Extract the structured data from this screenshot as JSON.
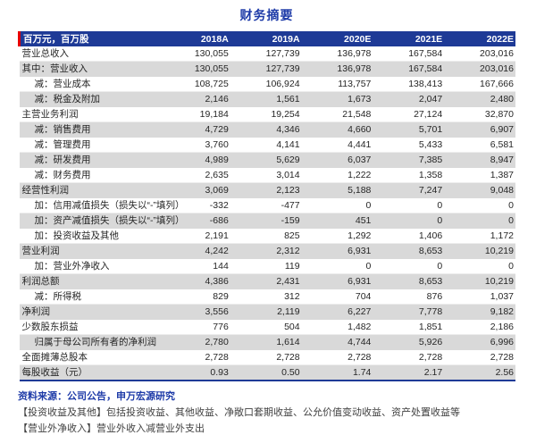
{
  "title": "财务摘要",
  "table": {
    "unit_label": "百万元，百万股",
    "columns": [
      "2018A",
      "2019A",
      "2020E",
      "2021E",
      "2022E"
    ],
    "rows": [
      {
        "label": "营业总收入",
        "indent": 0,
        "values": [
          "130,055",
          "127,739",
          "136,978",
          "167,584",
          "203,016"
        ]
      },
      {
        "label": "其中：营业收入",
        "indent": 0,
        "values": [
          "130,055",
          "127,739",
          "136,978",
          "167,584",
          "203,016"
        ]
      },
      {
        "label": "减：营业成本",
        "indent": 1,
        "values": [
          "108,725",
          "106,924",
          "113,757",
          "138,413",
          "167,666"
        ]
      },
      {
        "label": "减：税金及附加",
        "indent": 1,
        "values": [
          "2,146",
          "1,561",
          "1,673",
          "2,047",
          "2,480"
        ]
      },
      {
        "label": "主营业务利润",
        "indent": 0,
        "values": [
          "19,184",
          "19,254",
          "21,548",
          "27,124",
          "32,870"
        ]
      },
      {
        "label": "减：销售费用",
        "indent": 1,
        "values": [
          "4,729",
          "4,346",
          "4,660",
          "5,701",
          "6,907"
        ]
      },
      {
        "label": "减：管理费用",
        "indent": 1,
        "values": [
          "3,760",
          "4,141",
          "4,441",
          "5,433",
          "6,581"
        ]
      },
      {
        "label": "减：研发费用",
        "indent": 1,
        "values": [
          "4,989",
          "5,629",
          "6,037",
          "7,385",
          "8,947"
        ]
      },
      {
        "label": "减：财务费用",
        "indent": 1,
        "values": [
          "2,635",
          "3,014",
          "1,222",
          "1,358",
          "1,387"
        ]
      },
      {
        "label": "经营性利润",
        "indent": 0,
        "values": [
          "3,069",
          "2,123",
          "5,188",
          "7,247",
          "9,048"
        ]
      },
      {
        "label": "加：信用减值损失（损失以“-”填列）",
        "indent": 1,
        "values": [
          "-332",
          "-477",
          "0",
          "0",
          "0"
        ]
      },
      {
        "label": "加：资产减值损失（损失以“-”填列）",
        "indent": 1,
        "values": [
          "-686",
          "-159",
          "451",
          "0",
          "0"
        ]
      },
      {
        "label": "加：投资收益及其他",
        "indent": 1,
        "values": [
          "2,191",
          "825",
          "1,292",
          "1,406",
          "1,172"
        ]
      },
      {
        "label": "营业利润",
        "indent": 0,
        "values": [
          "4,242",
          "2,312",
          "6,931",
          "8,653",
          "10,219"
        ]
      },
      {
        "label": "加：营业外净收入",
        "indent": 1,
        "values": [
          "144",
          "119",
          "0",
          "0",
          "0"
        ]
      },
      {
        "label": "利润总额",
        "indent": 0,
        "values": [
          "4,386",
          "2,431",
          "6,931",
          "8,653",
          "10,219"
        ]
      },
      {
        "label": "减：所得税",
        "indent": 1,
        "values": [
          "829",
          "312",
          "704",
          "876",
          "1,037"
        ]
      },
      {
        "label": "净利润",
        "indent": 0,
        "values": [
          "3,556",
          "2,119",
          "6,227",
          "7,778",
          "9,182"
        ]
      },
      {
        "label": "少数股东损益",
        "indent": 0,
        "values": [
          "776",
          "504",
          "1,482",
          "1,851",
          "2,186"
        ]
      },
      {
        "label": "归属于母公司所有者的净利润",
        "indent": 1,
        "values": [
          "2,780",
          "1,614",
          "4,744",
          "5,926",
          "6,996"
        ]
      },
      {
        "label": "全面摊薄总股本",
        "indent": 0,
        "values": [
          "2,728",
          "2,728",
          "2,728",
          "2,728",
          "2,728"
        ]
      },
      {
        "label": "每股收益（元）",
        "indent": 0,
        "values": [
          "0.93",
          "0.50",
          "1.74",
          "2.17",
          "2.56"
        ]
      }
    ]
  },
  "footer": {
    "source": "资料来源：公司公告，申万宏源研究"
  },
  "footnotes": [
    "【投资收益及其他】包括投资收益、其他收益、净敞口套期收益、公允价值变动收益、资产处置收益等",
    "【营业外净收入】营业外收入减营业外支出"
  ],
  "colors": {
    "header_bg": "#1e3a96",
    "accent_red": "#e60000",
    "stripe_gray": "#d9d9d9",
    "title_blue": "#1e3ba8",
    "bottom_border_blue": "#1e3a96"
  }
}
